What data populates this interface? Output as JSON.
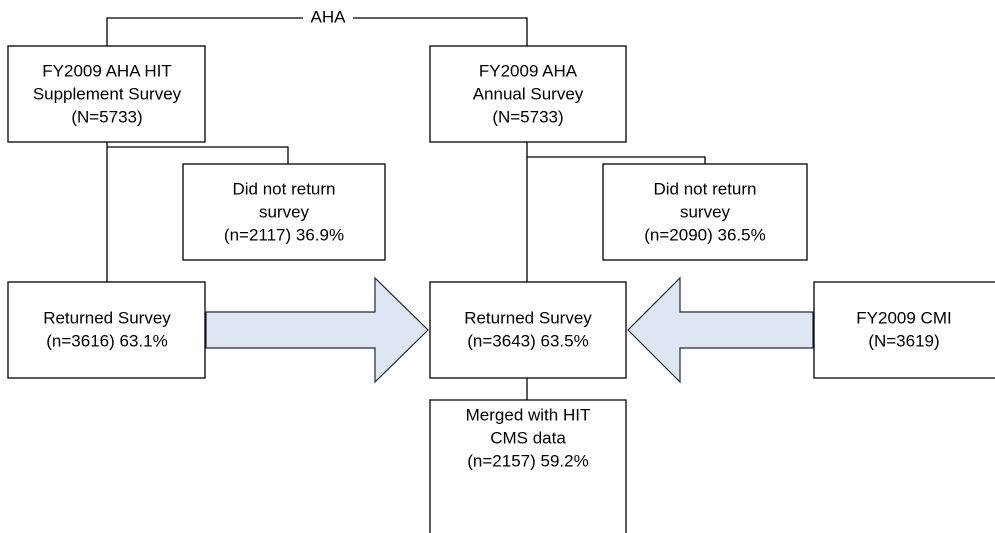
{
  "connector_label": "AHA",
  "nodes": [
    {
      "lines": [
        "FY2009 AHA HIT",
        "Supplement Survey",
        "(N=5733)"
      ]
    },
    {
      "lines": [
        "FY2009 AHA",
        "Annual Survey",
        "(N=5733)"
      ]
    },
    {
      "lines": [
        "Did not return",
        "survey",
        "(n=2117) 36.9%"
      ]
    },
    {
      "lines": [
        "Did not return",
        "survey",
        "(n=2090) 36.5%"
      ]
    },
    {
      "lines": [
        "Returned Survey",
        "(n=3616) 63.1%"
      ]
    },
    {
      "lines": [
        "Returned Survey",
        "(n=3643) 63.5%"
      ]
    },
    {
      "lines": [
        "FY2009 CMI",
        "(N=3619)"
      ]
    },
    {
      "lines": [
        "Merged with HIT",
        "CMS data",
        "(n=2157) 59.2%"
      ]
    }
  ]
}
